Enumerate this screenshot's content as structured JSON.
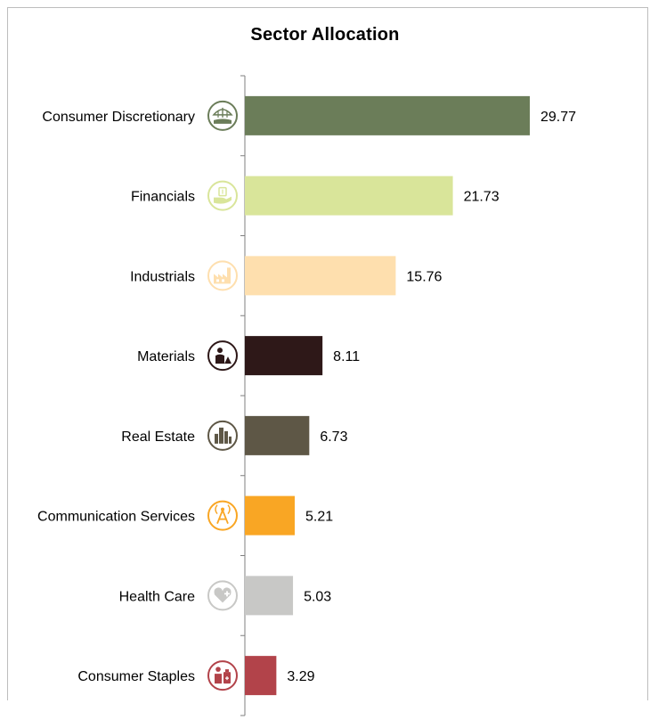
{
  "chart_data": {
    "type": "bar",
    "orientation": "horizontal",
    "title": "Sector Allocation",
    "categories": [
      "Consumer Discretionary",
      "Financials",
      "Industrials",
      "Materials",
      "Real Estate",
      "Communication Services",
      "Health Care",
      "Consumer Staples"
    ],
    "values": [
      29.77,
      21.73,
      15.76,
      8.11,
      6.73,
      5.21,
      5.03,
      3.29
    ],
    "value_labels": [
      "29.77",
      "21.73",
      "15.76",
      "8.11",
      "6.73",
      "5.21",
      "5.03",
      "3.29"
    ],
    "colors": [
      "#6b7d59",
      "#d9e59a",
      "#fedfae",
      "#2e1818",
      "#5e5746",
      "#f9a624",
      "#c8c8c6",
      "#b2434a"
    ],
    "icons": [
      "umbrella-shop-icon",
      "hand-money-icon",
      "factory-icon",
      "worker-icon",
      "buildings-icon",
      "antenna-tower-icon",
      "heart-plus-icon",
      "person-bottle-icon"
    ],
    "xlabel": "",
    "ylabel": "",
    "xlim": [
      0,
      30
    ],
    "grid": false,
    "legend": "none"
  }
}
